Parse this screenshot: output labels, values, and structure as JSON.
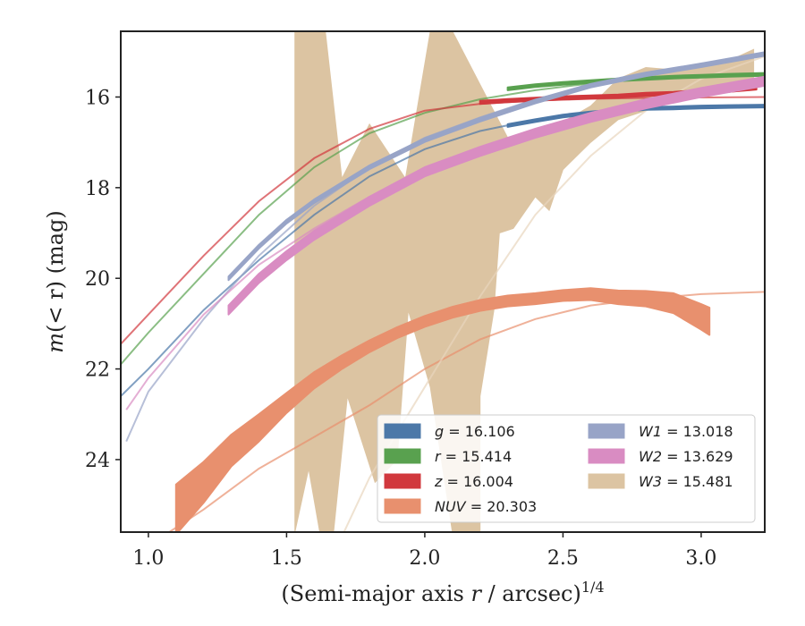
{
  "chart_data": {
    "type": "line",
    "xlabel_main": "(Semi-major axis ",
    "xlabel_var": "r",
    "xlabel_tail": " / arcsec)",
    "xlabel_sup": "1/4",
    "ylabel_main": "m",
    "ylabel_tail": "(< r) (mag)",
    "xlim": [
      0.9,
      3.23
    ],
    "ylim": [
      25.6,
      14.55
    ],
    "y_inverted": true,
    "xticks": [
      1.0,
      1.5,
      2.0,
      2.5,
      3.0
    ],
    "xtick_labels": [
      "1.0",
      "1.5",
      "2.0",
      "2.5",
      "3.0"
    ],
    "yticks": [
      16,
      18,
      20,
      22,
      24
    ],
    "ytick_labels": [
      "16",
      "18",
      "20",
      "22",
      "24"
    ],
    "grid": false,
    "legend_position": "lower-right",
    "legend_entries": [
      {
        "band": "g",
        "value": "16.106",
        "color": "#4c78a8"
      },
      {
        "band": "r",
        "value": "15.414",
        "color": "#59a14f"
      },
      {
        "band": "z",
        "value": "16.004",
        "color": "#d1383d"
      },
      {
        "band": "NUV",
        "value": "20.303",
        "color": "#e8906e"
      },
      {
        "band": "W1",
        "value": "13.018",
        "color": "#98a4c7"
      },
      {
        "band": "W2",
        "value": "13.629",
        "color": "#d98cc2"
      },
      {
        "band": "W3",
        "value": "15.481",
        "color": "#dcc4a2"
      }
    ],
    "fit_curves": [
      {
        "band": "g",
        "color": "#4c78a8",
        "x": [
          0.9,
          1.0,
          1.2,
          1.4,
          1.6,
          1.8,
          2.0,
          2.2,
          2.4,
          2.6,
          2.8,
          3.0,
          3.23
        ],
        "y": [
          22.6,
          22.0,
          20.7,
          19.6,
          18.6,
          17.75,
          17.15,
          16.75,
          16.5,
          16.35,
          16.25,
          16.2,
          16.18
        ]
      },
      {
        "band": "r",
        "color": "#59a14f",
        "x": [
          0.9,
          1.0,
          1.2,
          1.4,
          1.6,
          1.8,
          2.0,
          2.2,
          2.4,
          2.6,
          2.8,
          3.0,
          3.23
        ],
        "y": [
          21.9,
          21.2,
          19.9,
          18.6,
          17.55,
          16.8,
          16.35,
          16.05,
          15.85,
          15.7,
          15.6,
          15.55,
          15.52
        ]
      },
      {
        "band": "z",
        "color": "#d1383d",
        "x": [
          0.9,
          1.0,
          1.2,
          1.4,
          1.6,
          1.8,
          2.0,
          2.2,
          2.4,
          2.6,
          2.8,
          3.0,
          3.23
        ],
        "y": [
          21.45,
          20.8,
          19.5,
          18.3,
          17.35,
          16.7,
          16.3,
          16.15,
          16.08,
          16.04,
          16.02,
          16.01,
          16.0
        ]
      },
      {
        "band": "NUV",
        "color": "#e8906e",
        "x": [
          1.05,
          1.2,
          1.4,
          1.6,
          1.8,
          2.0,
          2.2,
          2.4,
          2.6,
          2.8,
          3.0,
          3.23
        ],
        "y": [
          25.7,
          25.1,
          24.2,
          23.5,
          22.8,
          22.0,
          21.35,
          20.9,
          20.6,
          20.45,
          20.35,
          20.3
        ]
      },
      {
        "band": "W1",
        "color": "#98a4c7",
        "x": [
          0.92,
          1.0,
          1.2,
          1.4,
          1.6,
          1.8,
          2.0,
          2.2,
          2.4,
          2.6,
          2.8,
          3.0,
          3.23
        ],
        "y": [
          23.6,
          22.5,
          20.9,
          19.5,
          18.4,
          17.55,
          16.9,
          16.45,
          16.05,
          15.75,
          15.5,
          15.3,
          15.05
        ]
      },
      {
        "band": "W2",
        "color": "#d98cc2",
        "x": [
          0.92,
          1.0,
          1.2,
          1.4,
          1.6,
          1.8,
          2.0,
          2.2,
          2.4,
          2.6,
          2.8,
          3.0,
          3.23
        ],
        "y": [
          22.9,
          22.2,
          20.8,
          19.7,
          18.9,
          18.2,
          17.6,
          17.15,
          16.75,
          16.4,
          16.1,
          15.85,
          15.6
        ]
      },
      {
        "band": "W3",
        "color": "#e8d5be",
        "x": [
          1.7,
          1.8,
          2.0,
          2.2,
          2.4,
          2.6,
          2.8,
          3.0,
          3.23
        ],
        "y": [
          25.7,
          24.4,
          22.4,
          20.4,
          18.6,
          17.3,
          16.3,
          15.6,
          15.1
        ]
      }
    ],
    "measured_profiles": [
      {
        "band": "g",
        "color": "#4c78a8",
        "x": [
          2.3,
          2.4,
          2.5,
          2.6,
          2.7,
          2.8,
          2.9,
          3.0,
          3.1,
          3.23
        ],
        "y": [
          16.63,
          16.52,
          16.42,
          16.35,
          16.3,
          16.25,
          16.24,
          16.22,
          16.21,
          16.2
        ],
        "halfwidth": 0.03
      },
      {
        "band": "r",
        "color": "#59a14f",
        "x": [
          2.3,
          2.4,
          2.5,
          2.6,
          2.7,
          2.8,
          2.9,
          3.0,
          3.1,
          3.23
        ],
        "y": [
          15.82,
          15.75,
          15.7,
          15.66,
          15.62,
          15.59,
          15.56,
          15.54,
          15.52,
          15.5
        ],
        "halfwidth": 0.03
      },
      {
        "band": "z",
        "color": "#d1383d",
        "x": [
          2.2,
          2.3,
          2.4,
          2.5,
          2.6,
          2.7,
          2.8,
          2.9,
          3.0,
          3.1,
          3.2
        ],
        "y": [
          16.12,
          16.08,
          16.05,
          16.02,
          16.0,
          15.98,
          15.94,
          15.92,
          15.88,
          15.85,
          15.8
        ],
        "halfwidth": 0.035
      },
      {
        "band": "NUV",
        "color": "#e8906e",
        "x": [
          1.1,
          1.2,
          1.3,
          1.4,
          1.5,
          1.6,
          1.7,
          1.8,
          1.9,
          2.0,
          2.1,
          2.2,
          2.3,
          2.4,
          2.5,
          2.6,
          2.7,
          2.8,
          2.9,
          3.0,
          3.03
        ],
        "y": [
          25.1,
          24.5,
          23.8,
          23.3,
          22.75,
          22.25,
          21.85,
          21.5,
          21.2,
          20.95,
          20.75,
          20.6,
          20.5,
          20.45,
          20.38,
          20.35,
          20.42,
          20.45,
          20.55,
          20.85,
          20.95
        ],
        "halfwidth": [
          0.55,
          0.45,
          0.35,
          0.3,
          0.22,
          0.18,
          0.15,
          0.13,
          0.12,
          0.12,
          0.12,
          0.12,
          0.12,
          0.12,
          0.12,
          0.13,
          0.15,
          0.17,
          0.22,
          0.28,
          0.3
        ]
      },
      {
        "band": "W1",
        "color": "#98a4c7",
        "x": [
          1.29,
          1.4,
          1.5,
          1.6,
          1.8,
          2.0,
          2.2,
          2.4,
          2.6,
          2.8,
          3.0,
          3.23
        ],
        "y": [
          20.0,
          19.3,
          18.75,
          18.3,
          17.55,
          16.95,
          16.5,
          16.1,
          15.75,
          15.5,
          15.3,
          15.05
        ],
        "halfwidth": 0.04
      },
      {
        "band": "W2",
        "color": "#d98cc2",
        "x": [
          1.29,
          1.4,
          1.5,
          1.6,
          1.8,
          2.0,
          2.2,
          2.4,
          2.6,
          2.8,
          3.0,
          3.23
        ],
        "y": [
          20.7,
          20.0,
          19.5,
          19.05,
          18.3,
          17.65,
          17.2,
          16.8,
          16.45,
          16.15,
          15.9,
          15.65
        ],
        "halfwidth": 0.1
      }
    ],
    "w3_band": {
      "color": "#dcc4a2",
      "upper": [
        [
          1.53,
          14.55
        ],
        [
          1.64,
          14.55
        ],
        [
          1.7,
          17.8
        ],
        [
          1.8,
          16.6
        ],
        [
          1.93,
          17.8
        ],
        [
          2.02,
          14.55
        ],
        [
          2.1,
          14.55
        ],
        [
          2.3,
          16.9
        ],
        [
          2.4,
          16.9
        ],
        [
          2.6,
          16.2
        ],
        [
          2.7,
          15.6
        ],
        [
          2.8,
          15.35
        ],
        [
          2.9,
          15.4
        ],
        [
          3.0,
          15.25
        ],
        [
          3.1,
          15.2
        ],
        [
          3.19,
          14.95
        ]
      ],
      "lower": [
        [
          3.19,
          15.7
        ],
        [
          3.1,
          15.8
        ],
        [
          3.0,
          15.9
        ],
        [
          2.9,
          16.1
        ],
        [
          2.8,
          16.3
        ],
        [
          2.7,
          16.5
        ],
        [
          2.6,
          17.0
        ],
        [
          2.5,
          17.6
        ],
        [
          2.45,
          18.5
        ],
        [
          2.4,
          18.2
        ],
        [
          2.32,
          18.9
        ],
        [
          2.27,
          19.0
        ],
        [
          2.25,
          20.7
        ],
        [
          2.2,
          22.6
        ],
        [
          2.2,
          25.6
        ],
        [
          2.1,
          25.6
        ],
        [
          2.02,
          22.4
        ],
        [
          1.94,
          20.7
        ],
        [
          1.9,
          24.0
        ],
        [
          1.82,
          24.5
        ],
        [
          1.72,
          22.6
        ],
        [
          1.67,
          25.6
        ],
        [
          1.62,
          25.6
        ],
        [
          1.58,
          24.2
        ],
        [
          1.53,
          25.6
        ]
      ]
    }
  }
}
